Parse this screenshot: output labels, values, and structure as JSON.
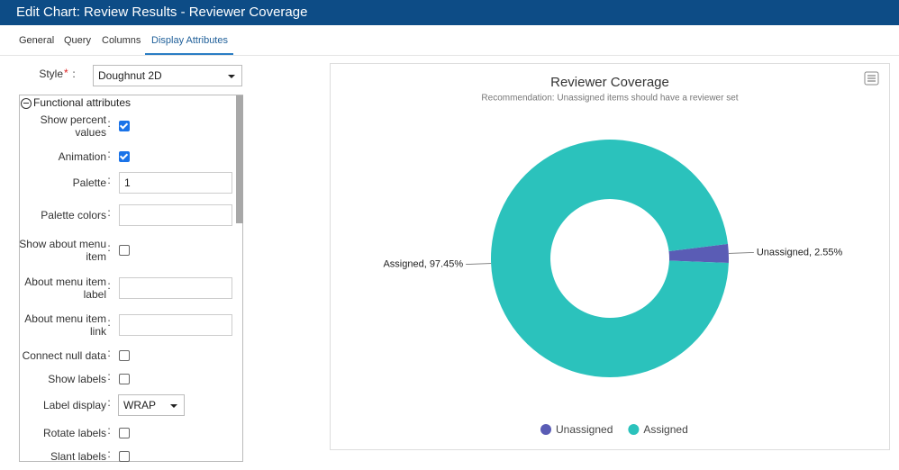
{
  "window": {
    "title": "Edit Chart: Review Results - Reviewer Coverage"
  },
  "tabs": [
    "General",
    "Query",
    "Columns",
    "Display Attributes"
  ],
  "active_tab": 3,
  "style": {
    "label": "Style",
    "required_mark": "*",
    "value": "Doughnut 2D"
  },
  "form": {
    "section": "Functional attributes",
    "separator": ":",
    "rows": [
      {
        "label": "Show percent values",
        "control": "checkbox",
        "checked": true
      },
      {
        "label": "Animation",
        "control": "checkbox",
        "checked": true
      },
      {
        "label": "Palette",
        "control": "input",
        "value": "1"
      },
      {
        "label": "Palette colors",
        "control": "input"
      },
      {
        "label": "Show about menu item",
        "control": "checkbox",
        "checked": false
      },
      {
        "label": "About menu item label",
        "control": "input"
      },
      {
        "label": "About menu item link",
        "control": "input"
      },
      {
        "label": "Connect null data",
        "control": "checkbox",
        "checked": false
      },
      {
        "label": "Show labels",
        "control": "checkbox",
        "checked": false
      },
      {
        "label": "Label display",
        "control": "select",
        "value": "WRAP"
      },
      {
        "label": "Rotate labels",
        "control": "checkbox",
        "checked": false
      },
      {
        "label": "Slant labels",
        "control": "checkbox",
        "checked": false
      }
    ]
  },
  "chart_data": {
    "type": "doughnut",
    "title": "Reviewer Coverage",
    "subtitle": "Recommendation: Unassigned items should have a reviewer set",
    "categories": [
      "Unassigned",
      "Assigned"
    ],
    "values": [
      2.55,
      97.45
    ],
    "value_labels": [
      "Unassigned, 2.55%",
      "Assigned, 97.45%"
    ],
    "colors": [
      "#5a5cb5",
      "#2bc2bc"
    ],
    "legend": "bottom"
  }
}
